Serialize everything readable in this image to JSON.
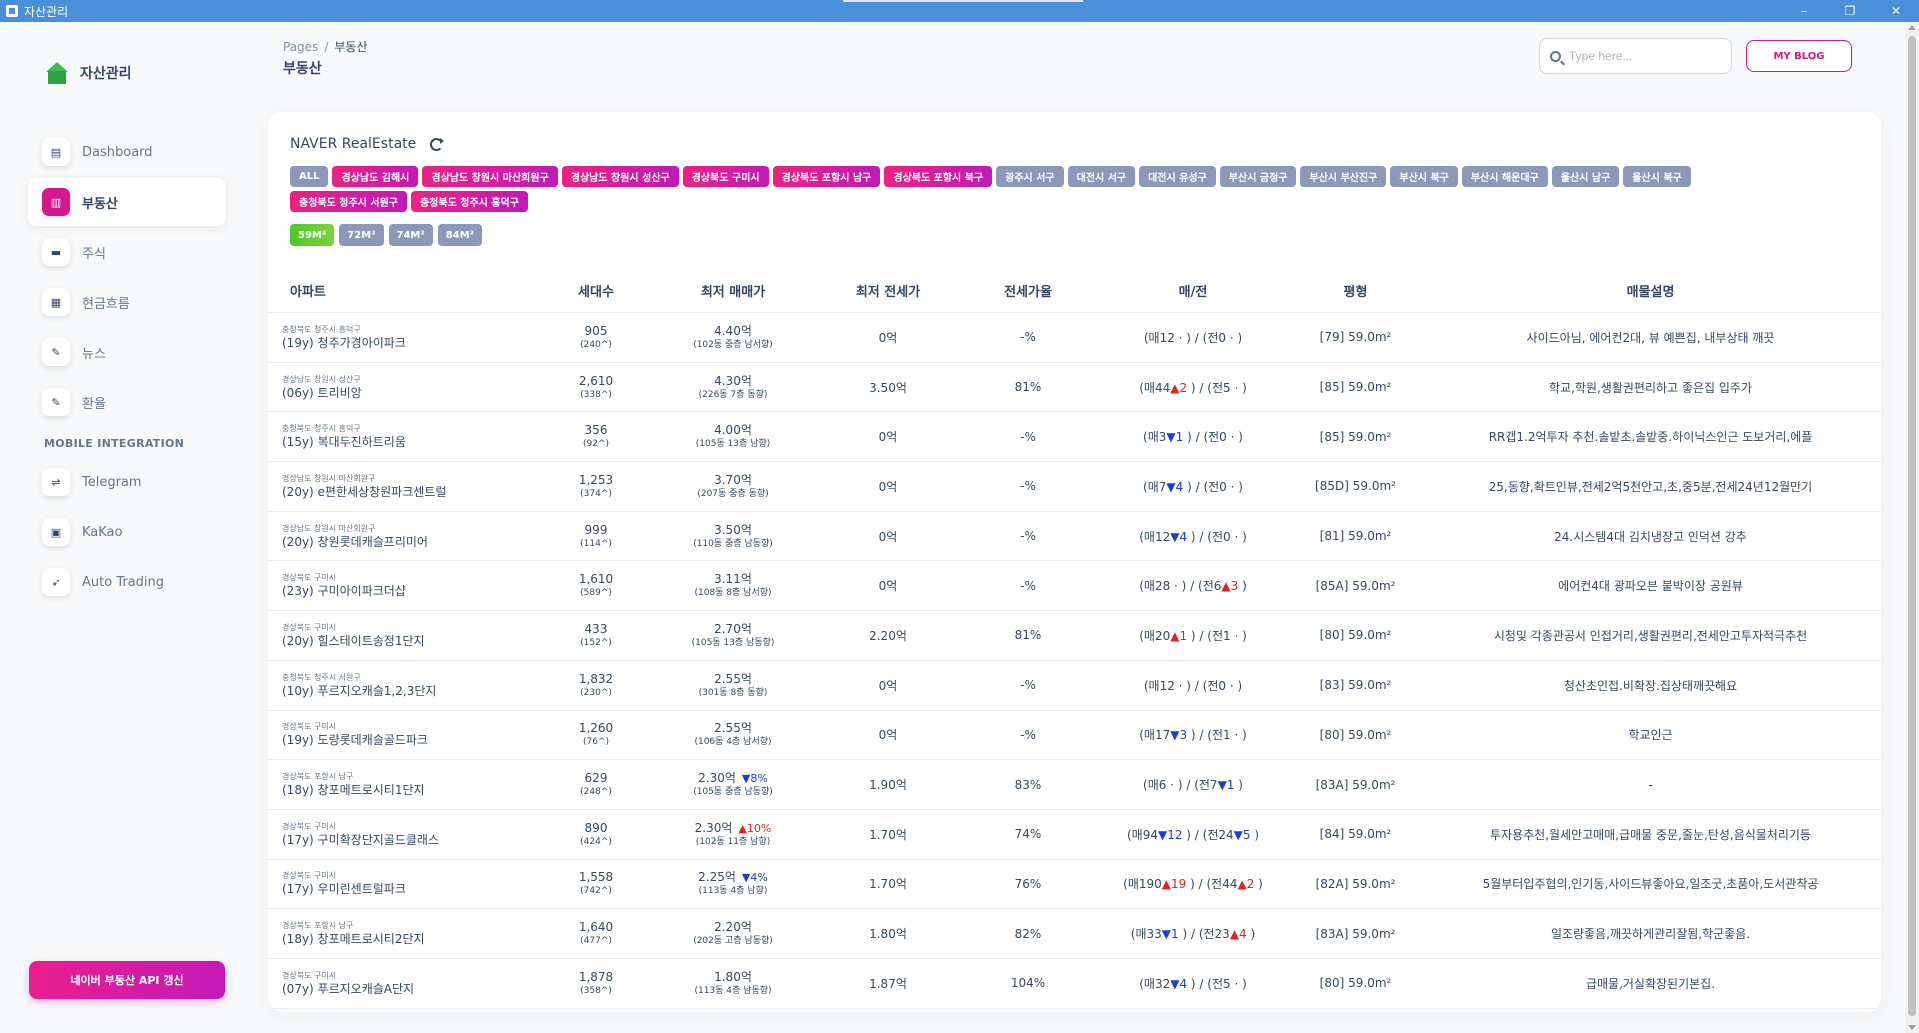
{
  "window": {
    "title": "자산관리",
    "minimize": "–",
    "maximize": "❐",
    "close": "✕"
  },
  "brand": {
    "name": "자산관리"
  },
  "nav": {
    "items": [
      {
        "label": "Dashboard",
        "icon": "store-icon",
        "glyph": "▤"
      },
      {
        "label": "부동산",
        "icon": "chart-icon",
        "glyph": "▥",
        "active": true
      },
      {
        "label": "주식",
        "icon": "card-icon",
        "glyph": "▬"
      },
      {
        "label": "현금흐름",
        "icon": "document-icon",
        "glyph": "▦"
      },
      {
        "label": "뉴스",
        "icon": "tools-icon",
        "glyph": "✎"
      },
      {
        "label": "환율",
        "icon": "tools-icon",
        "glyph": "✎"
      }
    ],
    "section": "MOBILE INTEGRATION",
    "mobile_items": [
      {
        "label": "Telegram",
        "icon": "telegram-icon",
        "glyph": "⇌"
      },
      {
        "label": "KaKao",
        "icon": "kakao-icon",
        "glyph": "▣"
      },
      {
        "label": "Auto Trading",
        "icon": "rocket-icon",
        "glyph": "➶"
      }
    ],
    "update_button": "네이버 부동산 API 갱신"
  },
  "header": {
    "breadcrumb_root": "Pages",
    "breadcrumb_sep": "/",
    "breadcrumb_current": "부동산",
    "page_title": "부동산",
    "search_placeholder": "Type here...",
    "blog_button": "MY BLOG"
  },
  "card": {
    "title": "NAVER RealEstate",
    "regions": [
      {
        "label": "ALL",
        "style": "all"
      },
      {
        "label": "경상남도 김해시",
        "style": "pink"
      },
      {
        "label": "경상남도 창원시 마산회원구",
        "style": "pink"
      },
      {
        "label": "경상남도 창원시 성산구",
        "style": "pink"
      },
      {
        "label": "경상북도 구미시",
        "style": "pink"
      },
      {
        "label": "경상북도 포항시 남구",
        "style": "pink"
      },
      {
        "label": "경상북도 포항시 북구",
        "style": "pink"
      },
      {
        "label": "광주시 서구",
        "style": "gray"
      },
      {
        "label": "대전시 서구",
        "style": "gray"
      },
      {
        "label": "대전시 유성구",
        "style": "gray"
      },
      {
        "label": "부산시 금정구",
        "style": "gray"
      },
      {
        "label": "부산시 부산진구",
        "style": "gray"
      },
      {
        "label": "부산시 북구",
        "style": "gray"
      },
      {
        "label": "부산시 해운대구",
        "style": "gray"
      },
      {
        "label": "울산시 남구",
        "style": "gray"
      },
      {
        "label": "울산시 북구",
        "style": "gray"
      },
      {
        "label": "충청북도 청주시 서원구",
        "style": "pink"
      },
      {
        "label": "충청북도 청주시 흥덕구",
        "style": "pink"
      }
    ],
    "sizes": [
      {
        "label": "59M²",
        "active": true
      },
      {
        "label": "72M²",
        "active": false
      },
      {
        "label": "74M²",
        "active": false
      },
      {
        "label": "84M²",
        "active": false
      }
    ]
  },
  "table": {
    "headers": [
      "아파트",
      "세대수",
      "최저 매매가",
      "최저 전세가",
      "전세가율",
      "매/전",
      "평형",
      "매물설명"
    ],
    "rows": [
      {
        "loc": "충청북도 청주시 흥덕구",
        "name": "(19y) 청주가경아이파크",
        "units": "905",
        "units_sub": "(240^)",
        "price": "4.40억",
        "price_chg": "",
        "price_dir": "",
        "price_sub": "(102동 중층 남서향)",
        "jeonse": "0억",
        "ratio": "-%",
        "mae": "(매12 · )",
        "mae_chg": "",
        "mae_dir": "",
        "jeon": "(전0 · )",
        "jeon_chg": "",
        "jeon_dir": "",
        "pyeong": "[79] 59.0m²",
        "desc": "사이드아님, 에어컨2대, 뷰 예쁜집, 내부상태 깨끗"
      },
      {
        "loc": "경상남도 창원시 성산구",
        "name": "(06y) 트리비앙",
        "units": "2,610",
        "units_sub": "(338^)",
        "price": "4.30억",
        "price_chg": "",
        "price_dir": "",
        "price_sub": "(226동 7층 동향)",
        "jeonse": "3.50억",
        "ratio": "81%",
        "mae": "(매44",
        "mae_chg": "▲2",
        "mae_dir": "up",
        "jeon": "(전5 · )",
        "jeon_chg": "",
        "jeon_dir": "",
        "pyeong": "[85] 59.0m²",
        "desc": "학교,학원,생활권편리하고 좋은집 입주가"
      },
      {
        "loc": "충청북도 청주시 흥덕구",
        "name": "(15y) 복대두진하트리움",
        "units": "356",
        "units_sub": "(92^)",
        "price": "4.00억",
        "price_chg": "",
        "price_dir": "",
        "price_sub": "(105동 13층 남향)",
        "jeonse": "0억",
        "ratio": "-%",
        "mae": "(매3",
        "mae_chg": "▼1",
        "mae_dir": "down",
        "jeon": "(전0 · )",
        "jeon_chg": "",
        "jeon_dir": "",
        "pyeong": "[85] 59.0m²",
        "desc": "RR갭1.2억투자 추천.솔밭초.솔밭중.하이닉스인근 도보거리,에플"
      },
      {
        "loc": "경상남도 창원시 마산회원구",
        "name": "(20y) e편한세상창원파크센트럴",
        "units": "1,253",
        "units_sub": "(374^)",
        "price": "3.70억",
        "price_chg": "",
        "price_dir": "",
        "price_sub": "(207동 중층 동향)",
        "jeonse": "0억",
        "ratio": "-%",
        "mae": "(매7",
        "mae_chg": "▼4",
        "mae_dir": "down",
        "jeon": "(전0 · )",
        "jeon_chg": "",
        "jeon_dir": "",
        "pyeong": "[85D] 59.0m²",
        "desc": "25,동향,확트인뷰,전세2억5천안고,초,중5분,전세24년12월만기"
      },
      {
        "loc": "경상남도 창원시 마산회원구",
        "name": "(20y) 창원롯데캐슬프리미어",
        "units": "999",
        "units_sub": "(114^)",
        "price": "3.50억",
        "price_chg": "",
        "price_dir": "",
        "price_sub": "(110동 중층 남동향)",
        "jeonse": "0억",
        "ratio": "-%",
        "mae": "(매12",
        "mae_chg": "▼4",
        "mae_dir": "down",
        "jeon": "(전0 · )",
        "jeon_chg": "",
        "jeon_dir": "",
        "pyeong": "[81] 59.0m²",
        "desc": "24.시스템4대 김치냉장고 인덕션 강추"
      },
      {
        "loc": "경상북도 구미시",
        "name": "(23y) 구미아이파크더샵",
        "units": "1,610",
        "units_sub": "(589^)",
        "price": "3.11억",
        "price_chg": "",
        "price_dir": "",
        "price_sub": "(108동 8층 남서향)",
        "jeonse": "0억",
        "ratio": "-%",
        "mae": "(매28 · )",
        "mae_chg": "",
        "mae_dir": "",
        "jeon": "(전6",
        "jeon_chg": "▲3",
        "jeon_dir": "up",
        "pyeong": "[85A] 59.0m²",
        "desc": "에어컨4대 광파오븐 붙박이장 공원뷰"
      },
      {
        "loc": "경상북도 구미시",
        "name": "(20y) 힐스테이트송정1단지",
        "units": "433",
        "units_sub": "(152^)",
        "price": "2.70억",
        "price_chg": "",
        "price_dir": "",
        "price_sub": "(105동 13층 남동향)",
        "jeonse": "2.20억",
        "ratio": "81%",
        "mae": "(매20",
        "mae_chg": "▲1",
        "mae_dir": "up",
        "jeon": "(전1 · )",
        "jeon_chg": "",
        "jeon_dir": "",
        "pyeong": "[80] 59.0m²",
        "desc": "시청및 각종관공서 인접거리,생활권편리,전세안고투자적극추천"
      },
      {
        "loc": "충청북도 청주시 서원구",
        "name": "(10y) 푸르지오캐슬1,2,3단지",
        "units": "1,832",
        "units_sub": "(230^)",
        "price": "2.55억",
        "price_chg": "",
        "price_dir": "",
        "price_sub": "(301동 8층 동향)",
        "jeonse": "0억",
        "ratio": "-%",
        "mae": "(매12 · )",
        "mae_chg": "",
        "mae_dir": "",
        "jeon": "(전0 · )",
        "jeon_chg": "",
        "jeon_dir": "",
        "pyeong": "[83] 59.0m²",
        "desc": "청산초인접.비확장.집상태깨끗해요"
      },
      {
        "loc": "경상북도 구미시",
        "name": "(19y) 도량롯데캐슬골드파크",
        "units": "1,260",
        "units_sub": "(76^)",
        "price": "2.55억",
        "price_chg": "",
        "price_dir": "",
        "price_sub": "(106동 4층 남서향)",
        "jeonse": "0억",
        "ratio": "-%",
        "mae": "(매17",
        "mae_chg": "▼3",
        "mae_dir": "down",
        "jeon": "(전1 · )",
        "jeon_chg": "",
        "jeon_dir": "",
        "pyeong": "[80] 59.0m²",
        "desc": "학교인근"
      },
      {
        "loc": "경상북도 포항시 남구",
        "name": "(18y) 창포메트로시티1단지",
        "units": "629",
        "units_sub": "(248^)",
        "price": "2.30억",
        "price_chg": "▼8%",
        "price_dir": "down",
        "price_sub": "(105동 중층 남동향)",
        "jeonse": "1.90억",
        "ratio": "83%",
        "mae": "(매6 · )",
        "mae_chg": "",
        "mae_dir": "",
        "jeon": "(전7",
        "jeon_chg": "▼1",
        "jeon_dir": "down",
        "pyeong": "[83A] 59.0m²",
        "desc": "-"
      },
      {
        "loc": "경상북도 구미시",
        "name": "(17y) 구미확장단지골드클래스",
        "units": "890",
        "units_sub": "(424^)",
        "price": "2.30억",
        "price_chg": "▲10%",
        "price_dir": "up",
        "price_sub": "(102동 11층 남향)",
        "jeonse": "1.70억",
        "ratio": "74%",
        "mae": "(매94",
        "mae_chg": "▼12",
        "mae_dir": "down",
        "jeon": "(전24",
        "jeon_chg": "▼5",
        "jeon_dir": "down",
        "pyeong": "[84] 59.0m²",
        "desc": "투자용추천,월세안고매매,급매물 중문,줄눈,탄성,음식물처리기등"
      },
      {
        "loc": "경상북도 구미시",
        "name": "(17y) 우미린센트럴파크",
        "units": "1,558",
        "units_sub": "(742^)",
        "price": "2.25억",
        "price_chg": "▼4%",
        "price_dir": "down",
        "price_sub": "(113동 4층 남향)",
        "jeonse": "1.70억",
        "ratio": "76%",
        "mae": "(매190",
        "mae_chg": "▲19",
        "mae_dir": "up",
        "jeon": "(전44",
        "jeon_chg": "▲2",
        "jeon_dir": "up",
        "pyeong": "[82A] 59.0m²",
        "desc": "5월부터입주협의,인기동,사이드뷰좋아요,일조굿,초품아,도서관착공"
      },
      {
        "loc": "경상북도 포항시 남구",
        "name": "(18y) 창포메트로시티2단지",
        "units": "1,640",
        "units_sub": "(477^)",
        "price": "2.20억",
        "price_chg": "",
        "price_dir": "",
        "price_sub": "(202동 고층 남동향)",
        "jeonse": "1.80억",
        "ratio": "82%",
        "mae": "(매33",
        "mae_chg": "▼1",
        "mae_dir": "down",
        "jeon": "(전23",
        "jeon_chg": "▲4",
        "jeon_dir": "up",
        "pyeong": "[83A] 59.0m²",
        "desc": "일조량좋음,깨끗하게관리잘됨,학군좋음."
      },
      {
        "loc": "경상북도 구미시",
        "name": "(07y) 푸르지오캐슬A단지",
        "units": "1,878",
        "units_sub": "(358^)",
        "price": "1.80억",
        "price_chg": "",
        "price_dir": "",
        "price_sub": "(113동 4층 남동향)",
        "jeonse": "1.87억",
        "ratio": "104%",
        "mae": "(매32",
        "mae_chg": "▼4",
        "mae_dir": "down",
        "jeon": "(전5 · )",
        "jeon_chg": "",
        "jeon_dir": "",
        "pyeong": "[80] 59.0m²",
        "desc": "급매물,거실확장된기본집."
      }
    ]
  },
  "colors": {
    "accent": "#d6168b",
    "up": "#e02424",
    "down": "#1a3fd6",
    "size_active": "#4fc82b",
    "chip_gray": "#8c98b9"
  }
}
